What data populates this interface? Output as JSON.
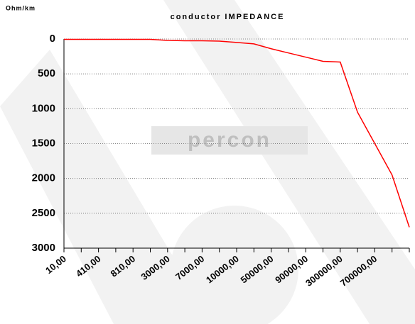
{
  "chart_data": {
    "type": "line",
    "title": "conductor IMPEDANCE",
    "y_label": "Ohm/km",
    "watermark": "percon",
    "categories": [
      "10,00",
      null,
      "410,00",
      null,
      "810,00",
      null,
      "3000,00",
      null,
      "7000,00",
      null,
      "10000,00",
      null,
      "50000,00",
      null,
      "90000,00",
      null,
      "300000,00",
      null,
      "700000,00",
      null,
      null
    ],
    "series": [
      {
        "name": "conductor IMPEDANCE",
        "color": "#ff0000",
        "values": [
          5,
          5,
          5,
          5,
          5,
          5,
          20,
          25,
          25,
          30,
          50,
          70,
          140,
          200,
          260,
          320,
          330,
          1050,
          1500,
          1950,
          2700
        ]
      }
    ],
    "ylim": [
      3000,
      0
    ],
    "yticks": [
      0,
      500,
      1000,
      1500,
      2000,
      2500,
      3000
    ],
    "grid": true
  }
}
